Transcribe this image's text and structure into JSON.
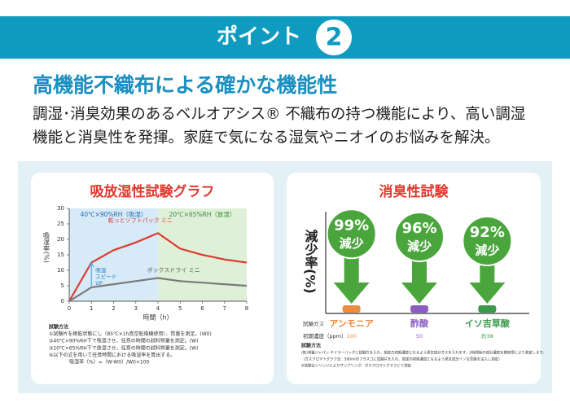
{
  "header": {
    "label": "ポイント",
    "number": "2"
  },
  "headline": "高機能不織布による確かな機能性",
  "body": [
    "調湿･消臭効果のあるベルオアシス® 不織布の持つ機能により、高い調湿",
    "機能と消臭性を発揮。家庭で気になる湿気やニオイのお悩みを解決。"
  ],
  "chart_data": [
    {
      "type": "line",
      "title": "吸放湿性試験グラフ",
      "y_label": "吸湿率(%)",
      "x_label": "時間（h）",
      "x": [
        0,
        1,
        2,
        3,
        4,
        5,
        6,
        7,
        8
      ],
      "series": [
        {
          "name": "乾っとソフトパック ミニ",
          "color": "#e03a2f",
          "values": [
            0,
            12.5,
            16.5,
            19,
            22,
            17,
            15,
            13.5,
            12.5
          ]
        },
        {
          "name": "ボックスドライ ミニ",
          "color": "#7a7a7a",
          "values": [
            0,
            4.5,
            5.5,
            6.5,
            7.5,
            6.5,
            6,
            5.5,
            5
          ]
        }
      ],
      "regions": [
        {
          "label": "40℃×90%RH（吸湿）",
          "from": 0,
          "to": 4,
          "color": "#d6eaf8"
        },
        {
          "label": "20℃×65%RH（放湿）",
          "from": 4,
          "to": 8,
          "color": "#dff0d8"
        }
      ],
      "annotation": [
        "吸湿",
        "スピード",
        "UP"
      ],
      "xlim": [
        0,
        8
      ],
      "xticks": [
        0,
        1,
        2,
        3,
        4,
        5,
        6,
        7,
        8
      ],
      "ylim": [
        0,
        30
      ],
      "yticks": [
        0,
        5,
        10,
        15,
        20,
        25,
        30
      ],
      "notes": [
        "試験方法",
        "①試験片を絶乾状態にし（85℃×1h真空乾燥機使用）、質量を測定。(W0)",
        "②40℃×90%RH下で吸湿させ、任意の時間の試料質量を測定。(W)",
        "③20℃×65%RH下で放湿させ、任意の時間の試料質量を測定。(W)",
        "④以下の式を用いて任意時間における吸湿率を算出する。",
        "吸湿率（%）=（W-W0）/W0×100"
      ]
    },
    {
      "type": "arrow",
      "title": "消臭性試験",
      "y_label": "減少率(%)",
      "categories": [
        "アンモニア",
        "酢酸",
        "イソ吉草酸"
      ],
      "colors": [
        "#f08a3c",
        "#8b5cc4",
        "#3a9a4a"
      ],
      "color": "#4aa63c",
      "values": [
        99,
        96,
        92
      ],
      "value_labels": [
        "99%",
        "96%",
        "92%"
      ],
      "value_suffix": "減少",
      "ylim": [
        0,
        100
      ],
      "gas_label": "試験ガス",
      "initial_label": "初期濃度（ppm）",
      "initial_values": [
        "100",
        "50",
        "約38"
      ],
      "notes": [
        "試験方法",
        "(株)常盤ジャパン テドラーバッグに試験片を入れ、規定の初期濃度となるよう臭気成分ガスを入れます。2時間後の成分濃度を検知管により測定します。",
        "（ガスクロマトグラフ法：500mlのフラスコに試験片を入れ、規定の初期濃度となるよう臭気成分イソ吉草酸を注入し測定）",
        "※試験はシリンジによりサンプリング、ガスクロマトグラフにて測定"
      ]
    }
  ]
}
